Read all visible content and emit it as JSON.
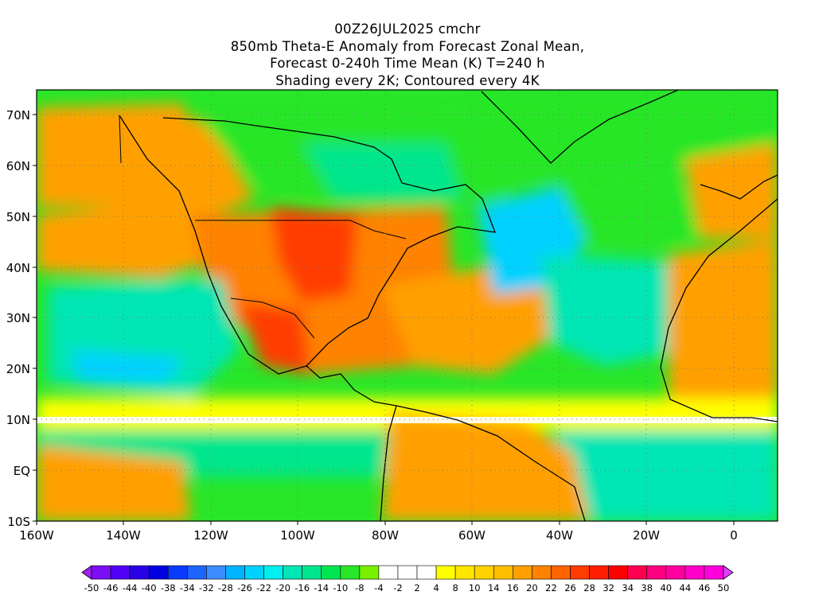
{
  "title": {
    "line1": "00Z26JUL2025 cmchr",
    "line2": "850mb Theta-E Anomaly from Forecast Zonal Mean,",
    "line3": "Forecast 0-240h Time Mean (K) T=240 h",
    "line4": "Shading every 2K; Contoured every 4K"
  },
  "map": {
    "projection": "lat-lon",
    "lon_range": [
      "160W",
      "10E"
    ],
    "lat_range": [
      "10S",
      "75N"
    ],
    "lon_ticks": [
      "160W",
      "140W",
      "120W",
      "100W",
      "80W",
      "60W",
      "40W",
      "20W",
      "0"
    ],
    "lat_ticks": [
      "10S",
      "EQ",
      "10N",
      "20N",
      "30N",
      "40N",
      "50N",
      "60N",
      "70N"
    ],
    "gridlines": "dotted",
    "regions": [
      {
        "name": "central-us-hot",
        "lon": -97,
        "lat": 42,
        "anomaly": 30
      },
      {
        "name": "mexico-hot",
        "lon": -105,
        "lat": 25,
        "anomaly": 28
      },
      {
        "name": "canada-arctic-cool",
        "lon": -95,
        "lat": 63,
        "anomaly": -12
      },
      {
        "name": "greenland-cool",
        "lon": -40,
        "lat": 70,
        "anomaly": -12
      },
      {
        "name": "nw-atlantic-cold",
        "lon": -45,
        "lat": 42,
        "anomaly": -22
      },
      {
        "name": "east-pacific-cold",
        "lon": -130,
        "lat": 25,
        "anomaly": -20
      },
      {
        "name": "south-america-warm",
        "lon": -60,
        "lat": 0,
        "anomaly": 18
      },
      {
        "name": "sahara-warm",
        "lon": 0,
        "lat": 22,
        "anomaly": 18
      },
      {
        "name": "equatorial-atlantic-cool",
        "lon": -25,
        "lat": 0,
        "anomaly": -16
      }
    ]
  },
  "colorbar": {
    "labels": [
      "-50",
      "-46",
      "-44",
      "-40",
      "-38",
      "-34",
      "-32",
      "-28",
      "-26",
      "-22",
      "-20",
      "-16",
      "-14",
      "-10",
      "-8",
      "-4",
      "-2",
      "2",
      "4",
      "8",
      "10",
      "14",
      "16",
      "20",
      "22",
      "26",
      "28",
      "32",
      "34",
      "38",
      "40",
      "44",
      "46",
      "50"
    ],
    "colors": [
      "#a020f0",
      "#7a0ff5",
      "#5200f5",
      "#2a00e8",
      "#0000e0",
      "#0a3cff",
      "#1e64ff",
      "#3c8cff",
      "#00b4ff",
      "#00d2ff",
      "#00f0f0",
      "#00e6b4",
      "#00e68c",
      "#00e650",
      "#28e628",
      "#78f000",
      "#ffffff",
      "#ffffff",
      "#ffffff",
      "#ffff00",
      "#ffe600",
      "#ffd200",
      "#ffbe00",
      "#ffa000",
      "#ff8200",
      "#ff6400",
      "#ff3c00",
      "#ff1e00",
      "#ff0000",
      "#ff0050",
      "#ff0080",
      "#ff00a0",
      "#ff00c8",
      "#ff00dc",
      "#e040fb"
    ]
  }
}
